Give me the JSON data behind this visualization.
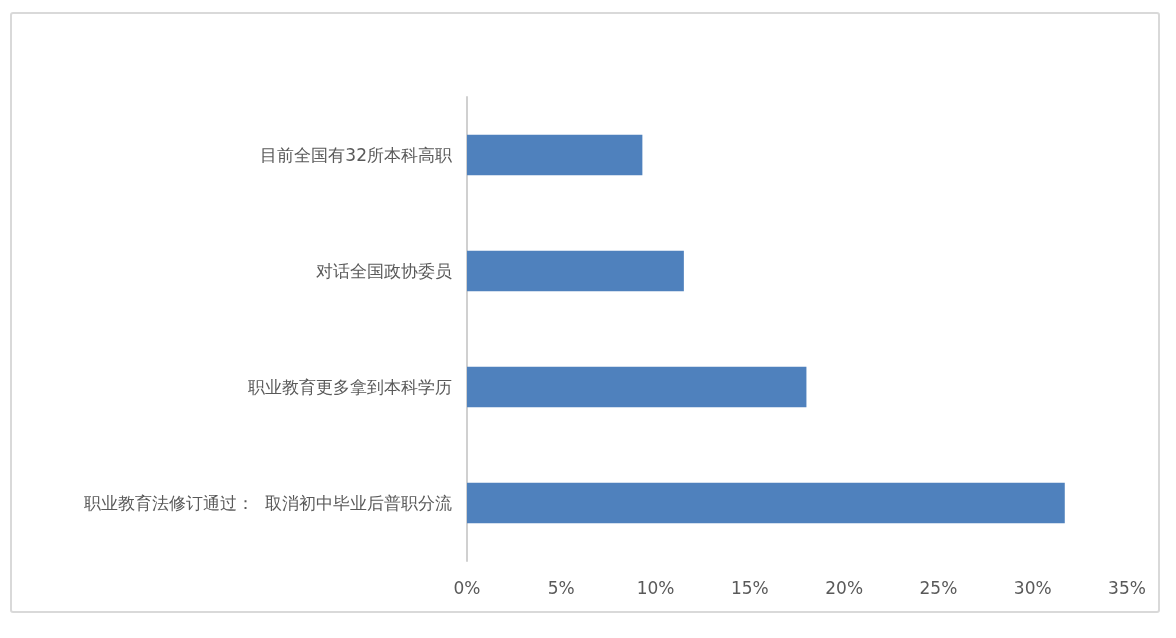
{
  "chart_data": {
    "type": "bar",
    "orientation": "horizontal",
    "categories": [
      "目前全国有32所本科高职",
      "对话全国政协委员",
      "职业教育更多拿到本科学历",
      "职业教育法修订通过：  取消初中毕业后普职分流"
    ],
    "values": [
      9.3,
      11.5,
      18.0,
      31.7
    ],
    "color": "#4f81bd",
    "xlim": [
      0,
      35
    ],
    "xticks": [
      {
        "value": 0,
        "label": "0%"
      },
      {
        "value": 5,
        "label": "5%"
      },
      {
        "value": 10,
        "label": "10%"
      },
      {
        "value": 15,
        "label": "15%"
      },
      {
        "value": 20,
        "label": "20%"
      },
      {
        "value": 25,
        "label": "25%"
      },
      {
        "value": 30,
        "label": "30%"
      },
      {
        "value": 35,
        "label": "35%"
      }
    ]
  }
}
